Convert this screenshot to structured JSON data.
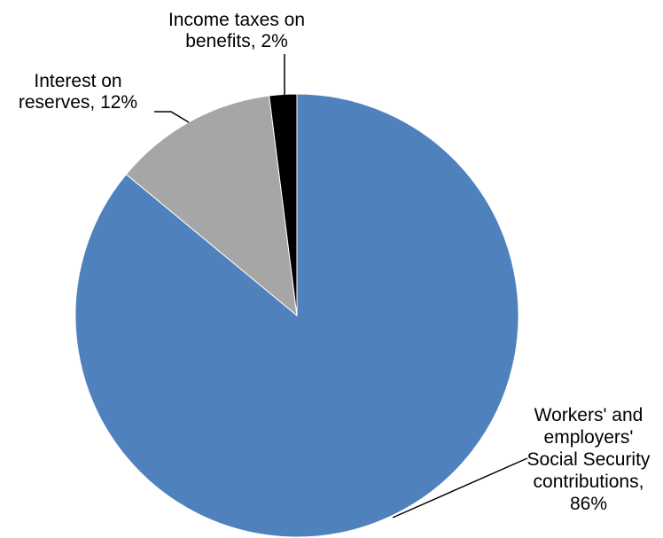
{
  "chart_data": {
    "type": "pie",
    "title": "",
    "legend": "none",
    "start_angle_deg": 0,
    "direction": "clockwise",
    "slices": [
      {
        "name": "Workers' and employers' Social Security contributions",
        "value": 86,
        "label_lines": [
          "Workers' and",
          "employers'",
          "Social Security",
          "contributions,",
          "86%"
        ],
        "color": "#4F81BD"
      },
      {
        "name": "Interest on reserves",
        "value": 12,
        "label_lines": [
          "Interest on",
          "reserves, 12%"
        ],
        "color": "#A6A6A6"
      },
      {
        "name": "Income taxes on benefits",
        "value": 2,
        "label_lines": [
          "Income taxes on",
          "benefits, 2%"
        ],
        "color": "#000000"
      }
    ]
  }
}
